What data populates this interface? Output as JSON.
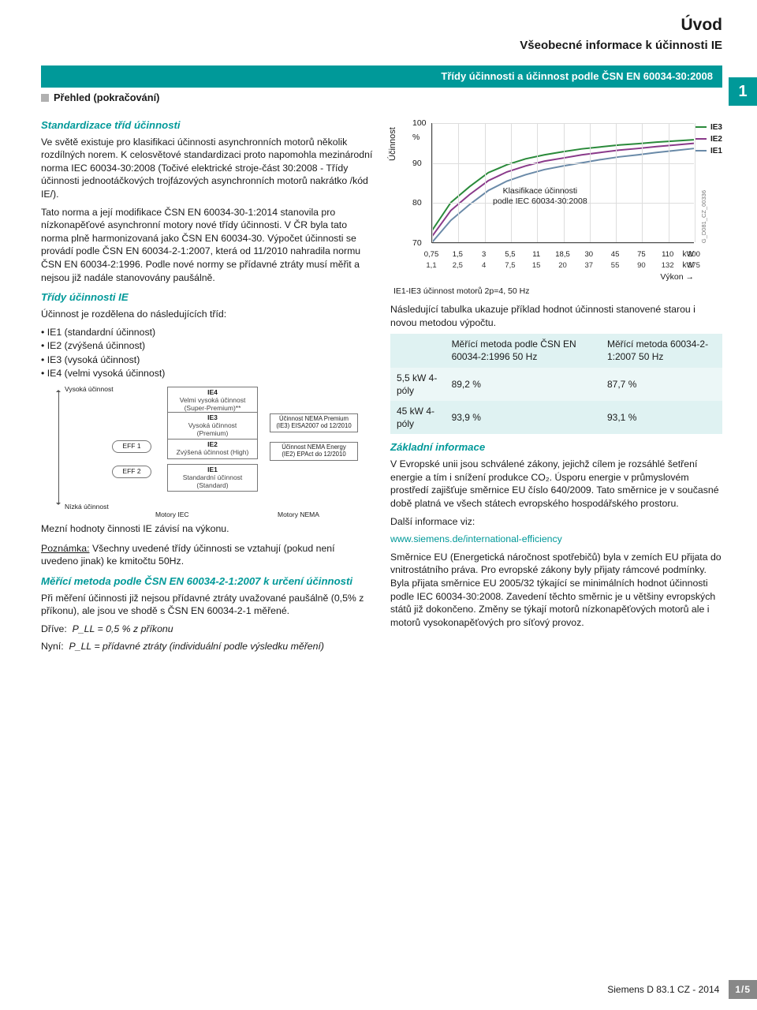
{
  "header": {
    "title": "Úvod",
    "subtitle": "Všeobecné informace k účinnosti IE",
    "band": "Třídy účinnosti a účinnost podle ČSN EN 60034-30:2008",
    "chapter_tab": "1",
    "overview": "Přehled (pokračování)"
  },
  "left": {
    "s1_title": "Standardizace tříd účinnosti",
    "s1_p1": "Ve světě existuje pro klasifikaci účinnosti asynchronních motorů několik rozdílných norem. K celosvětové standardizaci proto napomohla mezinárodní norma IEC 60034-30:2008 (Točivé elektrické stroje-část 30:2008 - Třídy účinnosti jednootáčkových trojfázových asynchronních motorů nakrátko /kód IE/).",
    "s1_p2": "Tato norma a její modifikace ČSN EN 60034-30-1:2014 stanovila pro nízkonapěťové asynchronní motory nové třídy účinnosti. V ČR byla tato norma plně harmonizovaná jako ČSN EN 60034-30. Výpočet účinnosti se provádí podle ČSN EN 60034-2-1:2007, která od 11/2010 nahradila normu ČSN EN 60034-2:1996. Podle nové normy se přídavné ztráty musí měřit a nejsou již nadále stanovovány paušálně.",
    "s2_title": "Třídy účinnosti IE",
    "s2_intro": "Účinnost je rozdělena do následujících tříd:",
    "s2_items": [
      "IE1 (standardní účinnost)",
      "IE2 (zvýšená účinnost)",
      "IE3 (vysoká účinnost)",
      "IE4 (velmi vysoká účinnost)"
    ],
    "diagram": {
      "top_label": "Vysoká\núčinnost",
      "bot_label": "Nízká\núčinnost",
      "ie4": {
        "name": "IE4",
        "sub": "Velmi vysoká účinnost\n(Super-Premium)**"
      },
      "ie3": {
        "name": "IE3",
        "sub": "Vysoká účinnost\n(Premium)"
      },
      "ie2": {
        "name": "IE2",
        "sub": "Zvýšená účinnost\n(High)"
      },
      "ie1": {
        "name": "IE1",
        "sub": "Standardní účinnost\n(Standard)"
      },
      "eff1": "EFF 1",
      "eff2": "EFF 2",
      "nema1": "Účinnost NEMA\nPremium (IE3)\nEISA2007 od 12/2010",
      "nema2": "Účinnost NEMA\nEnergy (IE2)\nEPAct do 12/2010",
      "foot_iec": "Motory IEC",
      "foot_nema": "Motory NEMA"
    },
    "after_diagram": "Mezní hodnoty činnosti IE závisí na výkonu.",
    "note_label": "Poznámka:",
    "note_text": "Všechny uvedené třídy účinnosti se vztahují (pokud není uvedeno jinak) ke kmitočtu 50Hz.",
    "s3_title": "Měřící metoda podle ČSN EN 60034-2-1:2007 k určení účinnosti",
    "s3_p1": "Při měření účinnosti již nejsou přídavné ztráty uvažované paušálně (0,5% z příkonu), ale jsou ve shodě s ČSN EN 60034-2-1 měřené.",
    "s3_before": "Dříve:",
    "s3_before_val": "P_LL = 0,5 % z příkonu",
    "s3_now": "Nyní:",
    "s3_now_val": "P_LL = přídavné ztráty (individuální podle výsledku měření)"
  },
  "chart": {
    "y_label": "Účinnost",
    "y_ticks": [
      70,
      80,
      90,
      100
    ],
    "y_unit": "%",
    "ylim": [
      70,
      100
    ],
    "x_ticks_top": [
      "0,75",
      "1,5",
      "3",
      "5,5",
      "11",
      "18,5",
      "30",
      "45",
      "75",
      "110",
      "200"
    ],
    "x_ticks_bot": [
      "1,1",
      "2,5",
      "4",
      "7,5",
      "15",
      "20",
      "37",
      "55",
      "90",
      "132",
      "375"
    ],
    "x_unit_top": "kW",
    "x_unit_bot": "kW",
    "x_axis_label": "Výkon",
    "legend": [
      {
        "label": "IE3",
        "color": "#2a8a3a"
      },
      {
        "label": "IE2",
        "color": "#8a3a8a"
      },
      {
        "label": "IE1",
        "color": "#6a8aa8"
      }
    ],
    "inline_note_1": "Klasifikace účinnosti",
    "inline_note_2": "podle IEC 60034-30:2008",
    "side_code": "G_D081_CZ_00336",
    "series": {
      "ie3": {
        "color": "#2a8a3a",
        "width": 2,
        "points": [
          73,
          80,
          84,
          87.5,
          89.5,
          91,
          92,
          92.8,
          93.5,
          94,
          94.5,
          94.8,
          95.2,
          95.5,
          95.8
        ]
      },
      "ie2": {
        "color": "#8a3a8a",
        "width": 2,
        "points": [
          71.5,
          78,
          82,
          85.5,
          87.7,
          89.2,
          90.4,
          91.2,
          92,
          92.6,
          93.2,
          93.6,
          94.1,
          94.5,
          94.9
        ]
      },
      "ie1": {
        "color": "#6a8aa8",
        "width": 2,
        "points": [
          70,
          75.5,
          79.5,
          83,
          85.4,
          87,
          88.3,
          89.2,
          90,
          90.8,
          91.5,
          92,
          92.6,
          93.1,
          93.6
        ]
      }
    },
    "grid_color": "#dddddd",
    "bg": "#ffffff",
    "caption": "IE1-IE3 účinnost motorů 2p=4, 50 Hz"
  },
  "right": {
    "intro": "Následující tabulka ukazuje příklad hodnot účinnosti stanovené starou i novou metodou výpočtu.",
    "table": {
      "head_c1": "",
      "head_c2": "Měřící metoda podle ČSN EN 60034-2:1996 50 Hz",
      "head_c3": "Měřící metoda\n\n60034-2-1:2007 50 Hz",
      "rows": [
        {
          "c1": "5,5 kW 4-póly",
          "c2": "89,2 %",
          "c3": "87,7 %"
        },
        {
          "c1": "45 kW 4-póly",
          "c2": "93,9 %",
          "c3": "93,1 %"
        }
      ]
    },
    "s4_title": "Základní informace",
    "s4_p1": "V Evropské unii jsou schválené zákony, jejichž cílem je rozsáhlé šetření energie a tím i snížení produkce CO₂. Úsporu energie v průmyslovém prostředí zajišťuje směrnice EU číslo 640/2009. Tato směrnice je v současné době platná ve všech státech evropského hospodářského prostoru.",
    "more": "Další informace viz:",
    "link": "www.siemens.de/international-efficiency",
    "s4_p2": "Směrnice EU (Energetická náročnost spotřebičů) byla v zemích EU přijata do vnitrostátního práva. Pro evropské zákony byly přijaty rámcové podmínky. Byla přijata směrnice EU 2005/32 týkající se minimálních hodnot účinnosti podle IEC 60034-30:2008. Zavedení těchto směrnic je u většiny evropských států již dokončeno. Změny se týkají motorů nízkonapěťových motorů ale i motorů vysokonapěťových pro síťový provoz."
  },
  "footer": {
    "doc": "Siemens D 83.1 CZ - 2014",
    "page": "1/5"
  }
}
